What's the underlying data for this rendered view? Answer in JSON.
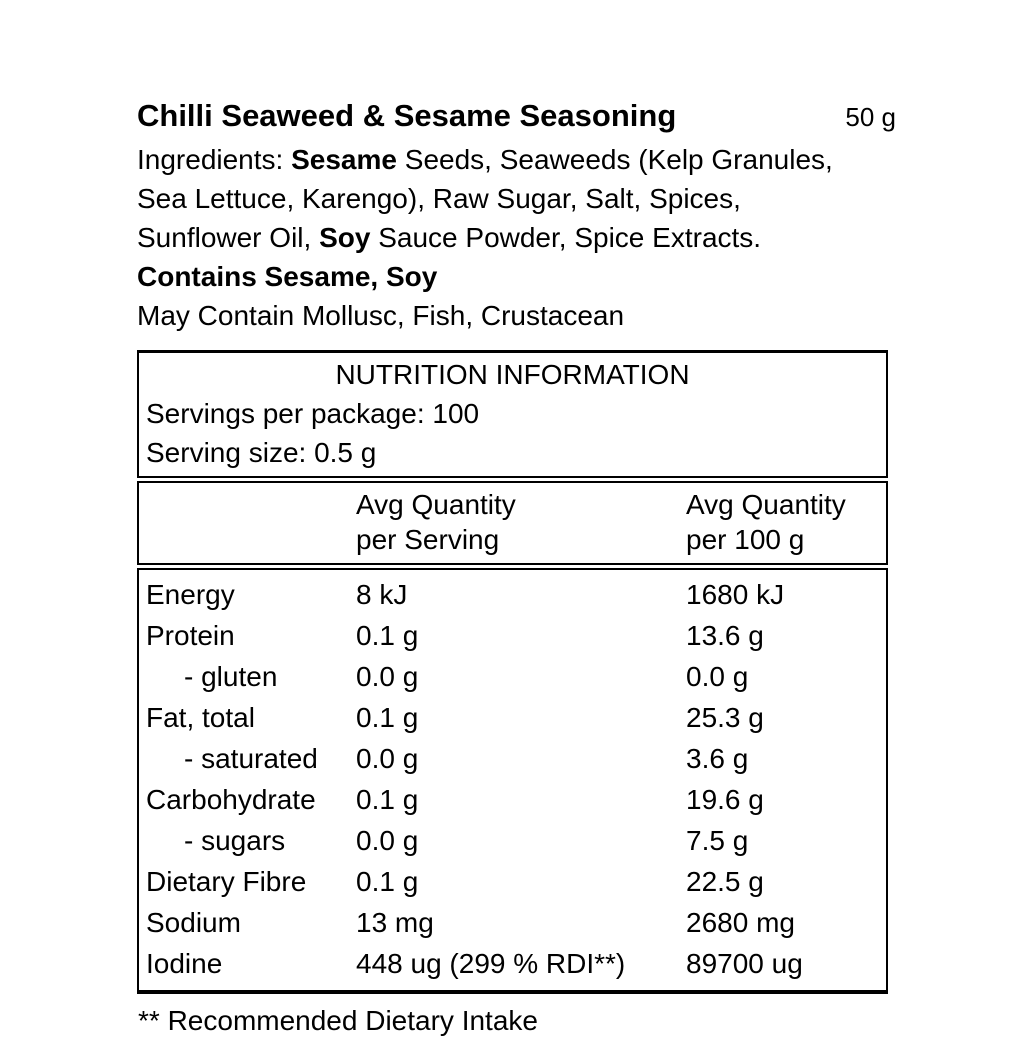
{
  "product": {
    "title": "Chilli Seaweed & Sesame Seasoning",
    "net_weight": "50 g",
    "ingredients_lines": [
      [
        {
          "t": "Ingredients: "
        },
        {
          "t": "Sesame",
          "b": true
        },
        {
          "t": " Seeds, Seaweeds (Kelp Granules,"
        }
      ],
      [
        {
          "t": "Sea Lettuce, Karengo), Raw Sugar, Salt, Spices,"
        }
      ],
      [
        {
          "t": "Sunflower Oil, "
        },
        {
          "t": "Soy",
          "b": true
        },
        {
          "t": " Sauce Powder, Spice Extracts."
        }
      ],
      [
        {
          "t": "Contains Sesame, Soy",
          "b": true
        }
      ],
      [
        {
          "t": "May Contain Mollusc, Fish, Crustacean"
        }
      ]
    ]
  },
  "nutrition": {
    "title": "NUTRITION INFORMATION",
    "servings_per_package": "Servings per package: 100",
    "serving_size": "Serving size: 0.5 g",
    "columns": {
      "per_serving": {
        "line1": "Avg Quantity",
        "line2": "per Serving"
      },
      "per_100g": {
        "line1": "Avg Quantity",
        "line2": "per 100 g"
      }
    },
    "rows": [
      {
        "name": "Energy",
        "per_serving": "8 kJ",
        "per_100g": "1680 kJ",
        "indent": false
      },
      {
        "name": "Protein",
        "per_serving": "0.1 g",
        "per_100g": "13.6 g",
        "indent": false
      },
      {
        "name": "- gluten",
        "per_serving": "0.0 g",
        "per_100g": "0.0 g",
        "indent": true
      },
      {
        "name": "Fat, total",
        "per_serving": "0.1 g",
        "per_100g": "25.3 g",
        "indent": false
      },
      {
        "name": "- saturated",
        "per_serving": "0.0 g",
        "per_100g": "3.6 g",
        "indent": true
      },
      {
        "name": "Carbohydrate",
        "per_serving": "0.1 g",
        "per_100g": "19.6 g",
        "indent": false
      },
      {
        "name": "- sugars",
        "per_serving": "0.0 g",
        "per_100g": "7.5 g",
        "indent": true
      },
      {
        "name": "Dietary Fibre",
        "per_serving": "0.1 g",
        "per_100g": "22.5 g",
        "indent": false
      },
      {
        "name": "Sodium",
        "per_serving": "13 mg",
        "per_100g": "2680 mg",
        "indent": false
      },
      {
        "name": "Iodine",
        "per_serving": "448 ug (299 % RDI**)",
        "per_100g": "89700 ug",
        "indent": false
      }
    ]
  },
  "footnote": "** Recommended Dietary Intake",
  "colors": {
    "text": "#000000",
    "border": "#000000",
    "background": "#ffffff"
  }
}
